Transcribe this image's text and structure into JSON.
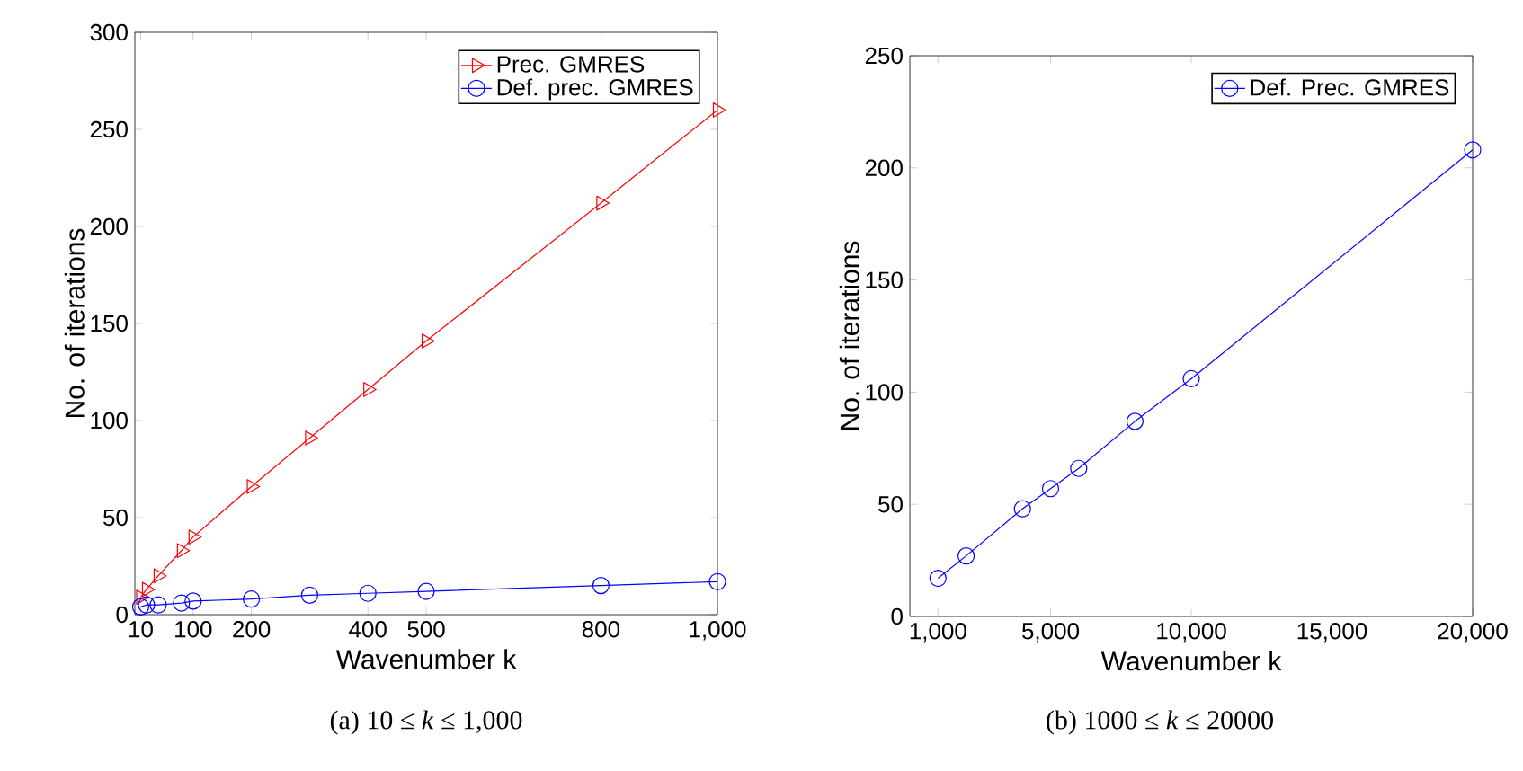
{
  "chart_data": [
    {
      "type": "line",
      "xlabel": "Wavenumber k",
      "ylabel": "No. of iterations",
      "xlim": [
        0,
        1000
      ],
      "ylim": [
        0,
        300
      ],
      "xticks": [
        10,
        100,
        200,
        400,
        500,
        800,
        {
          "value": 1000,
          "label": "1,000"
        }
      ],
      "yticks": [
        0,
        50,
        100,
        150,
        200,
        250,
        300
      ],
      "legend": "top right",
      "grid": false,
      "line_style": "solid",
      "series": [
        {
          "name": "Prec. GMRES",
          "color": "#ff0000",
          "marker": "triangle",
          "x": [
            10,
            20,
            40,
            80,
            100,
            200,
            300,
            400,
            500,
            800,
            1000
          ],
          "values": [
            9,
            13,
            20,
            33,
            40,
            66,
            91,
            116,
            141,
            212,
            260
          ]
        },
        {
          "name": "Def. prec. GMRES",
          "color": "#0000ff",
          "marker": "circle",
          "x": [
            10,
            20,
            40,
            80,
            100,
            200,
            300,
            400,
            500,
            800,
            1000
          ],
          "values": [
            4,
            5,
            5,
            6,
            7,
            8,
            10,
            11,
            12,
            15,
            17
          ]
        }
      ],
      "annotations": [
        "(a) 10 ≤ *k* ≤ 1,000"
      ]
    },
    {
      "type": "line",
      "xlabel": "Wavenumber k",
      "ylabel": "No. of iterations",
      "xlim": [
        0,
        20000
      ],
      "ylim": [
        0,
        250
      ],
      "xticks": [
        {
          "value": 1000,
          "label": "1,000"
        },
        {
          "value": 5000,
          "label": "5,000"
        },
        {
          "value": 10000,
          "label": "10,000"
        },
        {
          "value": 15000,
          "label": "15,000"
        },
        {
          "value": 20000,
          "label": "20,000"
        }
      ],
      "yticks": [
        0,
        50,
        100,
        150,
        200,
        250
      ],
      "legend": "top right",
      "grid": false,
      "line_style": "solid",
      "series": [
        {
          "name": "Def. Prec. GMRES",
          "color": "#0000ff",
          "marker": "circle",
          "x": [
            1000,
            2000,
            4000,
            5000,
            6000,
            8000,
            10000,
            20000
          ],
          "values": [
            17,
            27,
            48,
            57,
            66,
            87,
            106,
            208
          ]
        }
      ],
      "annotations": [
        "(b) 1000 ≤ *k* ≤ 20000"
      ]
    }
  ]
}
